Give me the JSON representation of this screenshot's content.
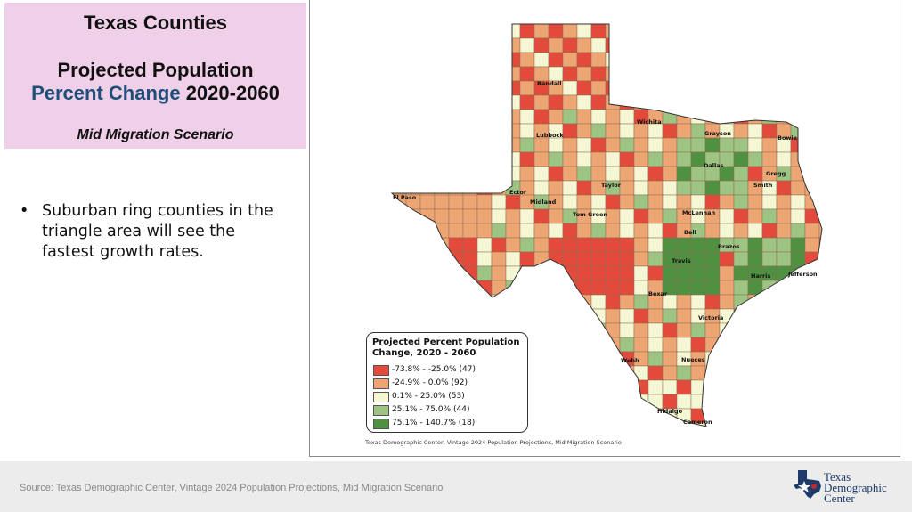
{
  "title": {
    "main": "Texas Counties",
    "line1": "Projected Population",
    "line2_accent": "Percent Change",
    "line2_rest": " 2020-2060",
    "scenario": "Mid Migration Scenario"
  },
  "bullets": [
    "Suburban ring counties in the triangle area will see the fastest growth rates."
  ],
  "map": {
    "cities": [
      "Randall",
      "Wichita",
      "Lubbock",
      "Grayson",
      "Bowie",
      "Dallas",
      "Gregg",
      "Smith",
      "El Paso",
      "Ector",
      "Midland",
      "Taylor",
      "Tom Green",
      "McLennan",
      "Bell",
      "Brazos",
      "Travis",
      "Harris",
      "Jefferson",
      "Bexar",
      "Victoria",
      "Webb",
      "Nueces",
      "Hidalgo",
      "Cameron"
    ],
    "colors": {
      "class1": "#e34a3b",
      "class2": "#eda673",
      "class3": "#f5f7d2",
      "class4": "#9dc482",
      "class5": "#4f9140"
    },
    "legend": {
      "title": "Projected Percent Population Change, 2020 - 2060",
      "items": [
        "-73.8% - -25.0% (47)",
        "-24.9% - 0.0% (92)",
        "0.1% - 25.0% (53)",
        "25.1% - 75.0% (44)",
        "75.1% - 140.7% (18)"
      ]
    },
    "credit": "Texas Demographic Center, Vintage 2024 Population Projections, Mid Migration Scenario"
  },
  "footer": {
    "source": "Source: Texas Demographic Center, Vintage 2024 Population Projections, Mid Migration Scenario",
    "logo_line1": "Texas",
    "logo_line2": "Demographic",
    "logo_line3": "Center"
  }
}
